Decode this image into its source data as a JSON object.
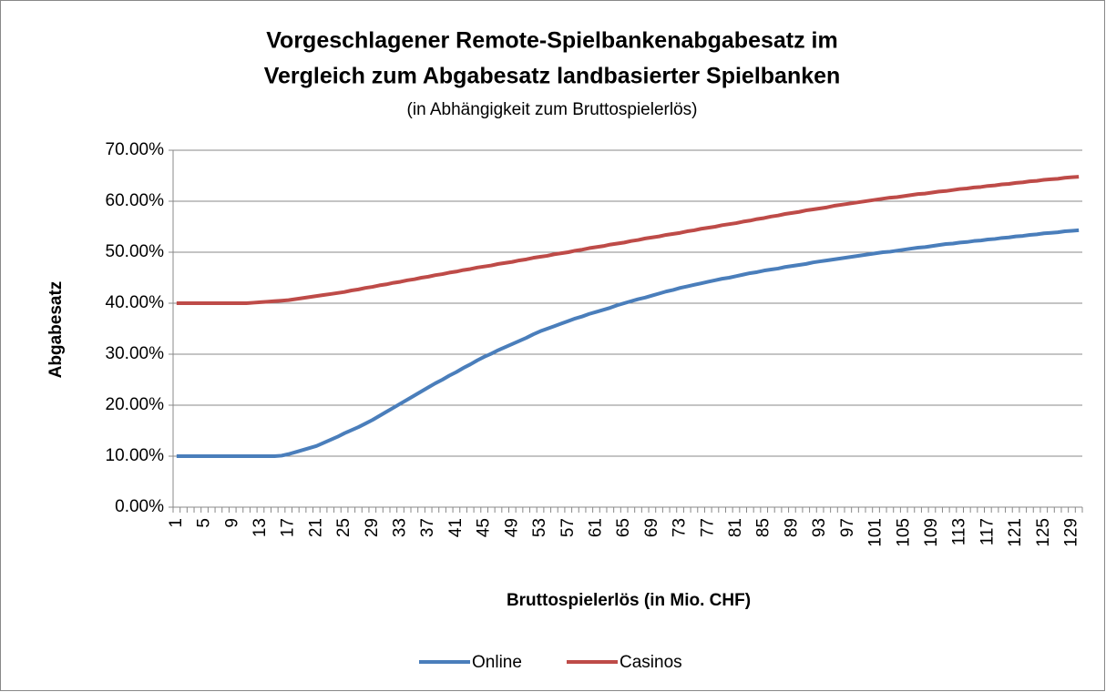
{
  "chart_data": {
    "type": "line",
    "title": [
      "Vorgeschlagener Remote-Spielbankenabgabesatz im",
      "Vergleich zum Abgabesatz landbasierter Spielbanken"
    ],
    "subtitle": "(in Abhängigkeit zum Bruttospielerlös)",
    "x_label": "Bruttospielerlös (in  Mio. CHF)",
    "y_label": "Abgabesatz",
    "categories": [
      1,
      null,
      null,
      null,
      5,
      null,
      null,
      null,
      9,
      null,
      null,
      null,
      13,
      null,
      null,
      null,
      17,
      null,
      null,
      null,
      21,
      null,
      null,
      null,
      25,
      null,
      null,
      null,
      29,
      null,
      null,
      null,
      33,
      null,
      null,
      null,
      37,
      null,
      null,
      null,
      41,
      null,
      null,
      null,
      45,
      null,
      null,
      null,
      49,
      null,
      null,
      null,
      53,
      null,
      null,
      null,
      57,
      null,
      null,
      null,
      61,
      null,
      null,
      null,
      65,
      null,
      null,
      null,
      69,
      null,
      null,
      null,
      73,
      null,
      null,
      null,
      77,
      null,
      null,
      null,
      81,
      null,
      null,
      null,
      85,
      null,
      null,
      null,
      89,
      null,
      null,
      null,
      93,
      null,
      null,
      null,
      97,
      null,
      null,
      null,
      101,
      null,
      null,
      null,
      105,
      null,
      null,
      null,
      109,
      null,
      null,
      null,
      113,
      null,
      null,
      null,
      117,
      null,
      null,
      null,
      121,
      null,
      null,
      null,
      125,
      null,
      null,
      null,
      129,
      null
    ],
    "series": [
      {
        "name": "Online",
        "color": "#4a7ebb",
        "values": [
          10,
          10,
          10,
          10,
          10,
          10,
          10,
          10,
          10,
          10,
          10,
          10,
          10,
          10,
          10,
          10.1,
          10.4,
          10.8,
          11.2,
          11.6,
          12.0,
          12.6,
          13.2,
          13.8,
          14.5,
          15.1,
          15.7,
          16.4,
          17.1,
          17.9,
          18.7,
          19.5,
          20.3,
          21.1,
          21.9,
          22.7,
          23.5,
          24.3,
          25.0,
          25.8,
          26.5,
          27.3,
          28.0,
          28.8,
          29.5,
          30.1,
          30.8,
          31.4,
          32.0,
          32.6,
          33.2,
          33.9,
          34.5,
          35.0,
          35.5,
          36.0,
          36.5,
          37.0,
          37.4,
          37.9,
          38.3,
          38.7,
          39.1,
          39.6,
          40.0,
          40.4,
          40.8,
          41.1,
          41.5,
          41.9,
          42.3,
          42.6,
          43.0,
          43.3,
          43.6,
          43.9,
          44.2,
          44.5,
          44.8,
          45.0,
          45.3,
          45.6,
          45.9,
          46.1,
          46.4,
          46.6,
          46.8,
          47.1,
          47.3,
          47.5,
          47.7,
          48.0,
          48.2,
          48.4,
          48.6,
          48.8,
          49.0,
          49.2,
          49.4,
          49.6,
          49.8,
          50.0,
          50.1,
          50.3,
          50.5,
          50.7,
          50.9,
          51.0,
          51.2,
          51.4,
          51.6,
          51.7,
          51.9,
          52.0,
          52.2,
          52.3,
          52.5,
          52.6,
          52.8,
          52.9,
          53.1,
          53.2,
          53.4,
          53.5,
          53.7,
          53.8,
          53.9,
          54.1,
          54.2,
          54.3
        ]
      },
      {
        "name": "Casinos",
        "color": "#be4b48",
        "values": [
          40,
          40,
          40,
          40,
          40,
          40,
          40,
          40,
          40,
          40,
          40,
          40.1,
          40.2,
          40.3,
          40.4,
          40.5,
          40.6,
          40.8,
          41.0,
          41.2,
          41.4,
          41.6,
          41.8,
          42.0,
          42.2,
          42.5,
          42.7,
          43.0,
          43.2,
          43.5,
          43.7,
          44.0,
          44.2,
          44.5,
          44.7,
          45.0,
          45.2,
          45.5,
          45.7,
          46.0,
          46.2,
          46.5,
          46.7,
          47.0,
          47.2,
          47.4,
          47.7,
          47.9,
          48.1,
          48.4,
          48.6,
          48.9,
          49.1,
          49.3,
          49.6,
          49.8,
          50.0,
          50.3,
          50.5,
          50.8,
          51.0,
          51.2,
          51.5,
          51.7,
          51.9,
          52.2,
          52.4,
          52.7,
          52.9,
          53.1,
          53.4,
          53.6,
          53.8,
          54.1,
          54.3,
          54.6,
          54.8,
          55.0,
          55.3,
          55.5,
          55.7,
          56.0,
          56.2,
          56.5,
          56.7,
          57.0,
          57.2,
          57.5,
          57.7,
          57.9,
          58.2,
          58.4,
          58.6,
          58.8,
          59.1,
          59.3,
          59.5,
          59.7,
          59.9,
          60.1,
          60.3,
          60.5,
          60.7,
          60.8,
          61.0,
          61.2,
          61.4,
          61.5,
          61.7,
          61.9,
          62.0,
          62.2,
          62.4,
          62.5,
          62.7,
          62.8,
          63.0,
          63.1,
          63.3,
          63.4,
          63.6,
          63.7,
          63.9,
          64.0,
          64.2,
          64.3,
          64.4,
          64.6,
          64.7,
          64.8
        ]
      }
    ],
    "ylim": [
      0,
      70
    ],
    "yticks": [
      {
        "value": 0,
        "label": "0.00%"
      },
      {
        "value": 10,
        "label": "10.00%"
      },
      {
        "value": 20,
        "label": "20.00%"
      },
      {
        "value": 30,
        "label": "30.00%"
      },
      {
        "value": 40,
        "label": "40.00%"
      },
      {
        "value": 50,
        "label": "50.00%"
      },
      {
        "value": 60,
        "label": "60.00%"
      },
      {
        "value": 70,
        "label": "70.00%"
      }
    ],
    "grid": true,
    "legend": "bottom"
  }
}
